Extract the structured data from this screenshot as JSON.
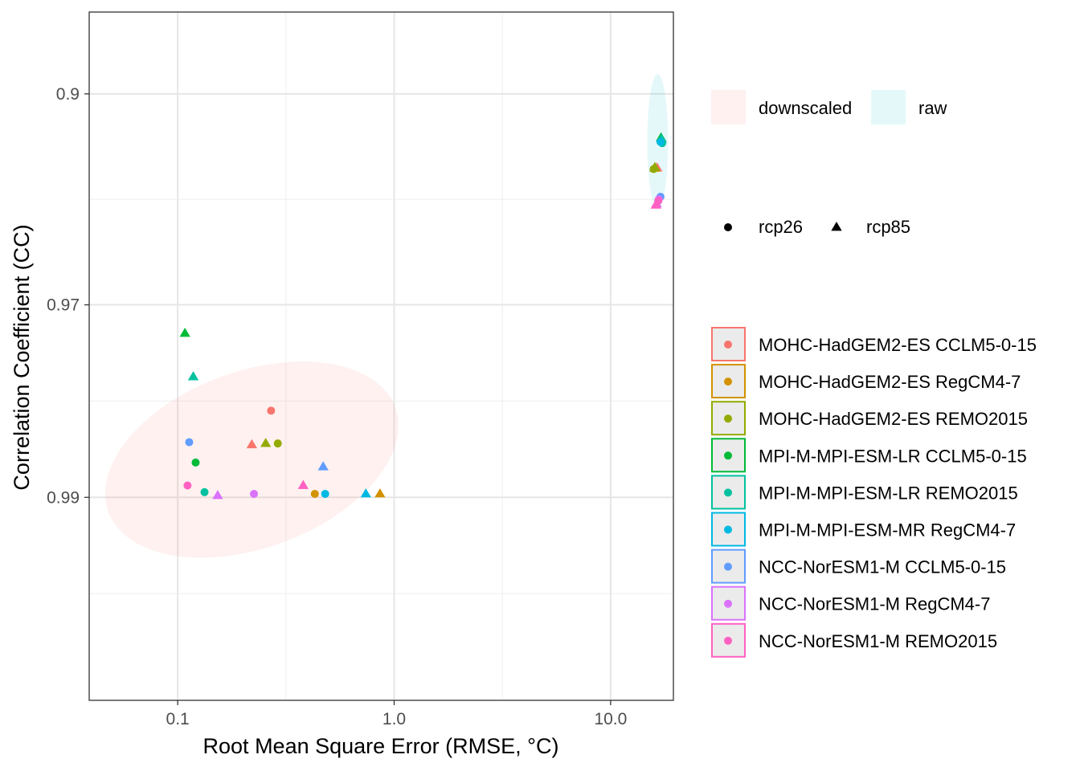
{
  "chart_data": {
    "type": "scatter",
    "xlabel": "Root Mean Square Error (RMSE, °C)",
    "ylabel": "Correlation Coefficient (CC)",
    "x_scale": "log10",
    "y_scale": "reverse log of (1 - CC)",
    "x_range": [
      0.039,
      19.5
    ],
    "y_range": [
      0.8405,
      0.99686
    ],
    "x_ticks": [
      {
        "value": 0.1,
        "label": "0.1"
      },
      {
        "value": 1.0,
        "label": "1.0"
      },
      {
        "value": 10.0,
        "label": "10.0"
      }
    ],
    "y_ticks": [
      {
        "value": 0.9,
        "label": "0.9"
      },
      {
        "value": 0.97,
        "label": "0.97"
      },
      {
        "value": 0.99,
        "label": "0.99"
      }
    ],
    "grid": true,
    "legend_placement": "right",
    "legends": {
      "fill": [
        {
          "key": "downscaled",
          "label": "downscaled",
          "color": "#f8766d"
        },
        {
          "key": "raw",
          "label": "raw",
          "color": "#00bfc4"
        }
      ],
      "shape": [
        {
          "key": "rcp26",
          "label": "rcp26",
          "shape": "circle"
        },
        {
          "key": "rcp85",
          "label": "rcp85",
          "shape": "triangle"
        }
      ],
      "model": [
        {
          "key": "m1",
          "label": "MOHC-HadGEM2-ES CCLM5-0-15",
          "color": "#F8766D"
        },
        {
          "key": "m2",
          "label": "MOHC-HadGEM2-ES RegCM4-7",
          "color": "#D39200"
        },
        {
          "key": "m3",
          "label": "MOHC-HadGEM2-ES REMO2015",
          "color": "#93AA00"
        },
        {
          "key": "m4",
          "label": "MPI-M-MPI-ESM-LR CCLM5-0-15",
          "color": "#00BA38"
        },
        {
          "key": "m5",
          "label": "MPI-M-MPI-ESM-LR REMO2015",
          "color": "#00C19F"
        },
        {
          "key": "m6",
          "label": "MPI-M-MPI-ESM-MR RegCM4-7",
          "color": "#00B9E3"
        },
        {
          "key": "m7",
          "label": "NCC-NorESM1-M CCLM5-0-15",
          "color": "#619CFF"
        },
        {
          "key": "m8",
          "label": "NCC-NorESM1-M RegCM4-7",
          "color": "#DB72FB"
        },
        {
          "key": "m9",
          "label": "NCC-NorESM1-M REMO2015",
          "color": "#FF61C3"
        }
      ]
    },
    "ellipses": [
      {
        "group": "downscaled",
        "center": [
          0.22,
          0.9876
        ],
        "color": "#f8766d",
        "opacity": 0.1
      },
      {
        "group": "raw",
        "center": [
          16.5,
          0.9238
        ],
        "color": "#00bfc4",
        "opacity": 0.1
      }
    ],
    "points": [
      {
        "model": "m1",
        "scenario": "rcp26",
        "x": 0.27,
        "y": 0.9836
      },
      {
        "model": "m1",
        "scenario": "rcp85",
        "x": 0.22,
        "y": 0.9865
      },
      {
        "model": "m2",
        "scenario": "rcp26",
        "x": 0.43,
        "y": 0.9898
      },
      {
        "model": "m2",
        "scenario": "rcp85",
        "x": 0.86,
        "y": 0.9898
      },
      {
        "model": "m3",
        "scenario": "rcp26",
        "x": 0.29,
        "y": 0.9864
      },
      {
        "model": "m3",
        "scenario": "rcp85",
        "x": 0.255,
        "y": 0.9864
      },
      {
        "model": "m4",
        "scenario": "rcp26",
        "x": 0.121,
        "y": 0.9878
      },
      {
        "model": "m5",
        "scenario": "rcp26",
        "x": 0.133,
        "y": 0.9897
      },
      {
        "model": "m5",
        "scenario": "rcp85",
        "x": 0.118,
        "y": 0.9801
      },
      {
        "model": "m4",
        "scenario": "rcp85",
        "x": 0.108,
        "y": 0.9745
      },
      {
        "model": "m6",
        "scenario": "rcp26",
        "x": 0.48,
        "y": 0.9898
      },
      {
        "model": "m6",
        "scenario": "rcp85",
        "x": 0.74,
        "y": 0.9898
      },
      {
        "model": "m7",
        "scenario": "rcp26",
        "x": 0.113,
        "y": 0.9863
      },
      {
        "model": "m7",
        "scenario": "rcp85",
        "x": 0.47,
        "y": 0.9881
      },
      {
        "model": "m8",
        "scenario": "rcp26",
        "x": 0.225,
        "y": 0.9898
      },
      {
        "model": "m8",
        "scenario": "rcp85",
        "x": 0.153,
        "y": 0.9899
      },
      {
        "model": "m9",
        "scenario": "rcp26",
        "x": 0.111,
        "y": 0.9893
      },
      {
        "model": "m9",
        "scenario": "rcp85",
        "x": 0.38,
        "y": 0.9893
      },
      {
        "model": "m1",
        "scenario": "rcp85",
        "x": 16.4,
        "y": 0.9345
      },
      {
        "model": "m2",
        "scenario": "rcp85",
        "x": 16.0,
        "y": 0.9346
      },
      {
        "model": "m3",
        "scenario": "rcp26",
        "x": 15.8,
        "y": 0.9349
      },
      {
        "model": "m3",
        "scenario": "rcp85",
        "x": 16.0,
        "y": 0.9343
      },
      {
        "model": "m4",
        "scenario": "rcp26",
        "x": 17.2,
        "y": 0.9238
      },
      {
        "model": "m4",
        "scenario": "rcp85",
        "x": 17.1,
        "y": 0.9222
      },
      {
        "model": "m5",
        "scenario": "rcp26",
        "x": 17.3,
        "y": 0.9245
      },
      {
        "model": "m5",
        "scenario": "rcp85",
        "x": 17.2,
        "y": 0.9228
      },
      {
        "model": "m6",
        "scenario": "rcp26",
        "x": 17.0,
        "y": 0.924
      },
      {
        "model": "m7",
        "scenario": "rcp26",
        "x": 17.0,
        "y": 0.9444
      },
      {
        "model": "m8",
        "scenario": "rcp26",
        "x": 16.7,
        "y": 0.9452
      },
      {
        "model": "m8",
        "scenario": "rcp85",
        "x": 16.3,
        "y": 0.9466
      },
      {
        "model": "m9",
        "scenario": "rcp26",
        "x": 16.6,
        "y": 0.9457
      },
      {
        "model": "m9",
        "scenario": "rcp85",
        "x": 16.2,
        "y": 0.947
      }
    ]
  }
}
